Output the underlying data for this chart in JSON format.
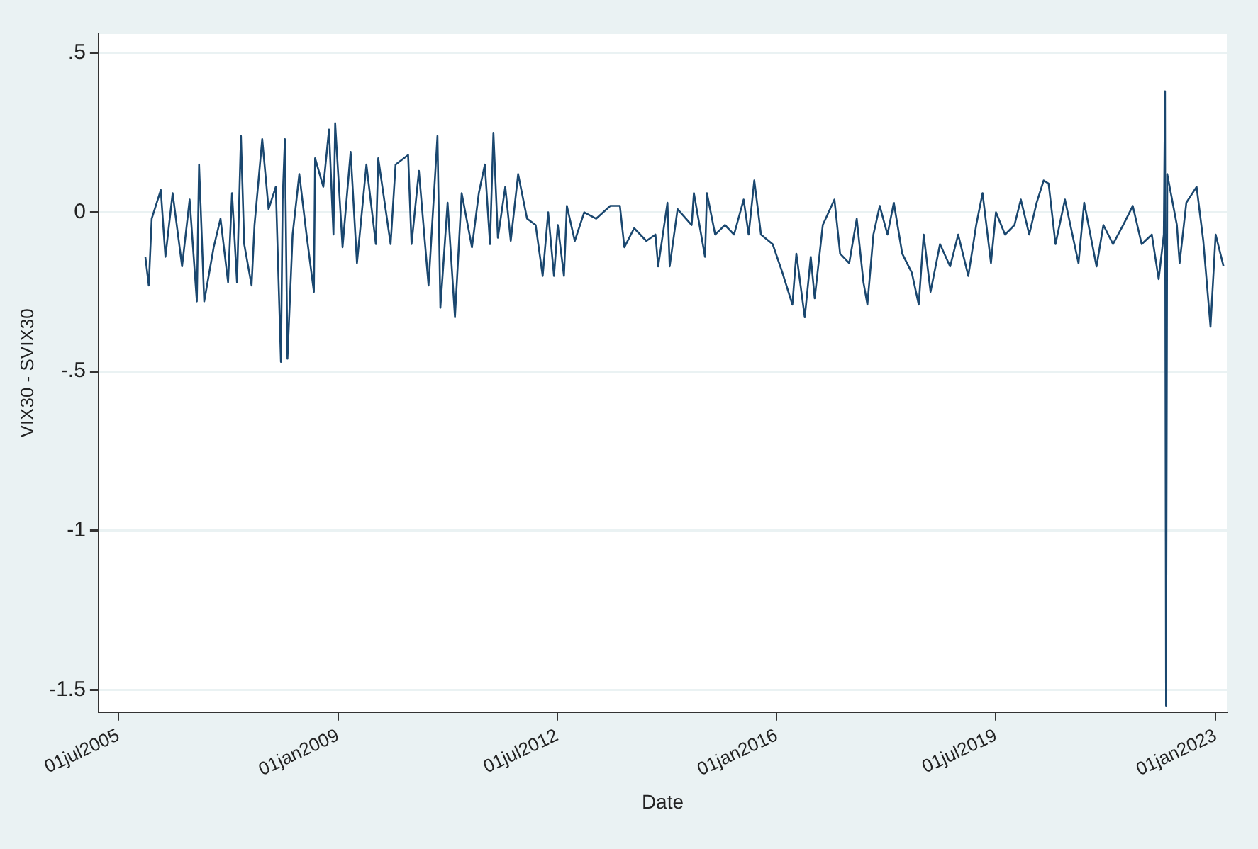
{
  "chart_data": {
    "type": "line",
    "xlabel": "Date",
    "ylabel": "VIX30 - SVIX30",
    "xlim": [
      "2005-03-07",
      "2023-03-07"
    ],
    "xticks": [
      {
        "value": "2005-07-01",
        "label": "01jul2005"
      },
      {
        "value": "2009-01-01",
        "label": "01jan2009"
      },
      {
        "value": "2012-07-01",
        "label": "01jul2012"
      },
      {
        "value": "2016-01-01",
        "label": "01jan2016"
      },
      {
        "value": "2019-07-01",
        "label": "01jul2019"
      },
      {
        "value": "2023-01-01",
        "label": "01jan2023"
      }
    ],
    "ylim": [
      -1.57,
      0.56
    ],
    "yticks": [
      {
        "value": -1.5,
        "label": "-1.5"
      },
      -1,
      {
        "value": -0.5,
        "label": "-.5"
      },
      0,
      {
        "value": 0.5,
        "label": ".5"
      }
    ],
    "grid": "y",
    "legend": false,
    "marker": "none",
    "line_style": "solid",
    "series": [
      {
        "color": "#1a476f",
        "x": [
          "2005-12-05",
          "2005-12-25",
          "2006-01-11",
          "2006-03-05",
          "2006-04-01",
          "2006-05-13",
          "2006-07-07",
          "2006-08-20",
          "2006-10-01",
          "2006-10-14",
          "2006-11-13",
          "2007-01-07",
          "2007-02-16",
          "2007-04-01",
          "2007-04-24",
          "2007-05-23",
          "2007-06-15",
          "2007-07-04",
          "2007-08-16",
          "2007-09-02",
          "2007-10-17",
          "2007-11-23",
          "2008-01-04",
          "2008-02-03",
          "2008-02-13",
          "2008-02-26",
          "2008-03-12",
          "2008-04-11",
          "2008-05-20",
          "2008-07-01",
          "2008-08-13",
          "2008-08-20",
          "2008-10-07",
          "2008-11-09",
          "2008-12-05",
          "2008-12-15",
          "2009-01-27",
          "2009-03-15",
          "2009-04-21",
          "2009-06-15",
          "2009-08-09",
          "2009-08-23",
          "2009-11-03",
          "2009-12-02",
          "2010-02-13",
          "2010-03-05",
          "2010-04-17",
          "2010-06-12",
          "2010-08-03",
          "2010-08-20",
          "2010-10-01",
          "2010-11-13",
          "2010-12-22",
          "2011-02-20",
          "2011-04-01",
          "2011-05-06",
          "2011-06-05",
          "2011-06-25",
          "2011-07-21",
          "2011-09-02",
          "2011-10-04",
          "2011-11-16",
          "2012-01-07",
          "2012-02-26",
          "2012-04-07",
          "2012-05-09",
          "2012-06-12",
          "2012-07-04",
          "2012-08-09",
          "2012-08-26",
          "2012-10-11",
          "2012-12-05",
          "2013-02-13",
          "2013-05-06",
          "2013-07-01",
          "2013-07-27",
          "2013-09-22",
          "2013-12-02",
          "2014-01-24",
          "2014-02-09",
          "2014-04-04",
          "2014-04-17",
          "2014-06-02",
          "2014-08-23",
          "2014-09-05",
          "2014-11-09",
          "2014-11-20",
          "2015-01-07",
          "2015-03-05",
          "2015-04-27",
          "2015-06-22",
          "2015-07-21",
          "2015-08-23",
          "2015-10-01",
          "2015-12-08",
          "2016-02-03",
          "2016-04-01",
          "2016-04-24",
          "2016-06-12",
          "2016-07-17",
          "2016-08-09",
          "2016-09-25",
          "2016-12-02",
          "2017-01-04",
          "2017-02-26",
          "2017-04-11",
          "2017-05-20",
          "2017-06-12",
          "2017-07-17",
          "2017-08-23",
          "2017-10-07",
          "2017-11-13",
          "2018-01-01",
          "2018-02-26",
          "2018-04-07",
          "2018-05-06",
          "2018-06-15",
          "2018-08-09",
          "2018-10-07",
          "2018-11-23",
          "2019-01-21",
          "2019-03-08",
          "2019-04-14",
          "2019-06-02",
          "2019-07-01",
          "2019-08-23",
          "2019-10-17",
          "2019-11-23",
          "2020-01-11",
          "2020-02-23",
          "2020-04-04",
          "2020-05-03",
          "2020-06-12",
          "2020-08-06",
          "2020-10-24",
          "2020-11-26",
          "2021-02-06",
          "2021-03-18",
          "2021-05-13",
          "2021-07-11",
          "2021-09-05",
          "2021-10-27",
          "2021-12-25",
          "2022-02-03",
          "2022-03-05",
          "2022-03-12",
          "2022-03-18",
          "2022-03-25",
          "2022-05-20",
          "2022-06-05",
          "2022-07-14",
          "2022-09-12",
          "2022-10-21",
          "2022-12-02",
          "2023-01-01",
          "2023-02-16"
        ],
        "values": [
          -0.14,
          -0.23,
          -0.02,
          0.07,
          -0.14,
          0.06,
          -0.17,
          0.04,
          -0.28,
          0.15,
          -0.28,
          -0.11,
          -0.02,
          -0.22,
          0.06,
          -0.22,
          0.24,
          -0.1,
          -0.23,
          -0.04,
          0.23,
          0.01,
          0.08,
          -0.47,
          0.04,
          0.23,
          -0.46,
          -0.07,
          0.12,
          -0.07,
          -0.25,
          0.17,
          0.08,
          0.26,
          -0.07,
          0.28,
          -0.11,
          0.19,
          -0.16,
          0.15,
          -0.1,
          0.17,
          -0.1,
          0.15,
          0.18,
          -0.1,
          0.13,
          -0.23,
          0.24,
          -0.3,
          0.03,
          -0.33,
          0.06,
          -0.11,
          0.06,
          0.15,
          -0.1,
          0.25,
          -0.08,
          0.08,
          -0.09,
          0.12,
          -0.02,
          -0.04,
          -0.2,
          0,
          -0.2,
          -0.04,
          -0.2,
          0.02,
          -0.09,
          0,
          -0.02,
          0.02,
          0.02,
          -0.11,
          -0.05,
          -0.09,
          -0.07,
          -0.17,
          0.03,
          -0.17,
          0.01,
          -0.04,
          0.06,
          -0.14,
          0.06,
          -0.07,
          -0.04,
          -0.07,
          0.04,
          -0.07,
          0.1,
          -0.07,
          -0.1,
          -0.19,
          -0.29,
          -0.13,
          -0.33,
          -0.14,
          -0.27,
          -0.04,
          0.04,
          -0.13,
          -0.16,
          -0.02,
          -0.22,
          -0.29,
          -0.07,
          0.02,
          -0.07,
          0.03,
          -0.13,
          -0.19,
          -0.29,
          -0.07,
          -0.25,
          -0.1,
          -0.17,
          -0.07,
          -0.2,
          -0.04,
          0.06,
          -0.16,
          0,
          -0.07,
          -0.04,
          0.04,
          -0.07,
          0.03,
          0.1,
          0.09,
          -0.1,
          0.04,
          -0.16,
          0.03,
          -0.17,
          -0.04,
          -0.1,
          -0.04,
          0.02,
          -0.1,
          -0.07,
          -0.21,
          -0.07,
          0.38,
          -1.55,
          0.12,
          -0.04,
          -0.16,
          0.03,
          0.08,
          -0.09,
          -0.36,
          -0.07,
          -0.17
        ]
      }
    ]
  }
}
